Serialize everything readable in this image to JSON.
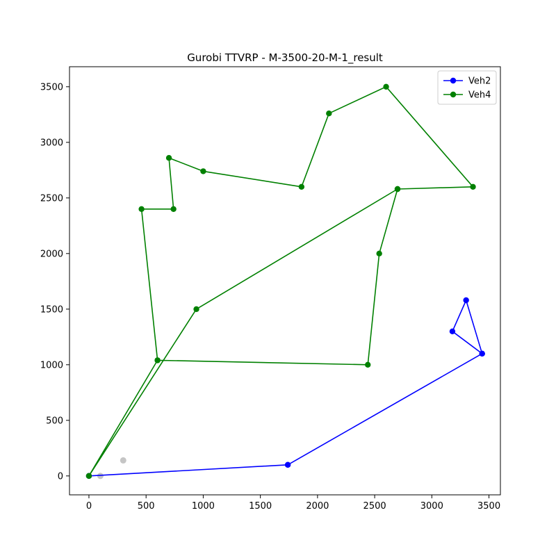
{
  "chart_data": {
    "type": "line",
    "title": "Gurobi TTVRP - M-3500-20-M-1_result",
    "xlabel": "",
    "ylabel": "",
    "xlim": [
      -170,
      3600
    ],
    "ylim": [
      -170,
      3680
    ],
    "xticks": [
      0,
      500,
      1000,
      1500,
      2000,
      2500,
      3000,
      3500
    ],
    "yticks": [
      0,
      500,
      1000,
      1500,
      2000,
      2500,
      3000,
      3500
    ],
    "grid": false,
    "legend_position": "top-right",
    "series": [
      {
        "name": "Veh2",
        "color": "#0000ff",
        "x": [
          0,
          1740,
          3440,
          3300,
          3180,
          3440,
          1740,
          0
        ],
        "y": [
          0,
          100,
          1100,
          1580,
          1300,
          1100,
          100,
          0
        ]
      },
      {
        "name": "Veh4",
        "color": "#008000",
        "x": [
          0,
          600,
          460,
          740,
          700,
          1000,
          1860,
          2100,
          2600,
          3360,
          2700,
          2540,
          2440,
          600,
          0,
          940,
          2700
        ],
        "y": [
          0,
          1040,
          2400,
          2400,
          2860,
          2740,
          2600,
          3260,
          3500,
          2600,
          2580,
          2000,
          1000,
          1040,
          0,
          1500,
          2580
        ]
      }
    ],
    "unvisited_points": {
      "color": "#bbbbbb",
      "x": [
        100,
        300
      ],
      "y": [
        0,
        140
      ]
    }
  }
}
